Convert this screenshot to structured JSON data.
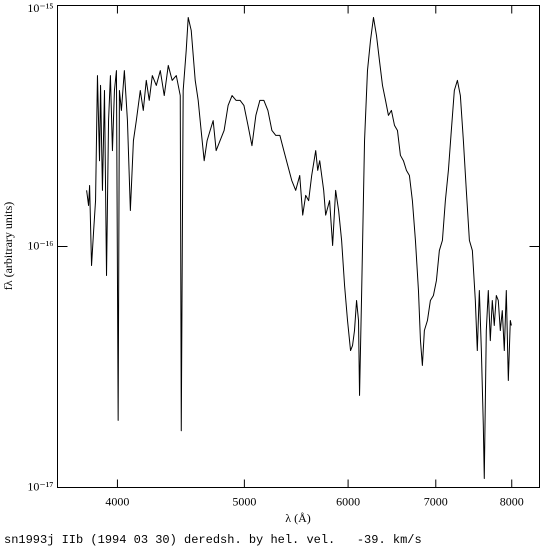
{
  "chart_data": {
    "type": "line",
    "xlabel": "λ (Å)",
    "ylabel": "fλ (arbitrary units)",
    "caption": "sn1993j IIb (1994 03 30) deredsh. by hel. vel.   -39. km/s",
    "xlog": true,
    "ylog": true,
    "grid": false,
    "xlim": [
      3600,
      8400
    ],
    "ylim": [
      1e-17,
      1e-15
    ],
    "xticks": [
      4000,
      5000,
      6000,
      7000,
      8000
    ],
    "yticks": [
      {
        "value": 1e-17,
        "label": "10⁻¹⁷"
      },
      {
        "value": 1e-16,
        "label": "10⁻¹⁶"
      },
      {
        "value": 1e-15,
        "label": "10⁻¹⁵"
      }
    ],
    "color": "#000000",
    "x": [
      3789,
      3802,
      3809,
      3822,
      3836,
      3849,
      3862,
      3876,
      3883,
      3896,
      3910,
      3924,
      3938,
      3951,
      3965,
      3979,
      3993,
      4005,
      4014,
      4028,
      4049,
      4071,
      4092,
      4114,
      4135,
      4164,
      4186,
      4208,
      4230,
      4253,
      4283,
      4313,
      4343,
      4374,
      4404,
      4436,
      4467,
      4475,
      4490,
      4514,
      4530,
      4554,
      4586,
      4610,
      4634,
      4659,
      4683,
      4708,
      4733,
      4758,
      4791,
      4825,
      4859,
      4893,
      4927,
      4962,
      4996,
      5032,
      5067,
      5102,
      5138,
      5174,
      5211,
      5248,
      5284,
      5322,
      5359,
      5396,
      5434,
      5472,
      5511,
      5540,
      5569,
      5598,
      5628,
      5668,
      5688,
      5708,
      5748,
      5768,
      5808,
      5839,
      5870,
      5901,
      5932,
      5963,
      5994,
      6026,
      6047,
      6068,
      6090,
      6111,
      6122,
      6143,
      6176,
      6208,
      6241,
      6274,
      6307,
      6340,
      6374,
      6408,
      6441,
      6475,
      6510,
      6544,
      6578,
      6613,
      6648,
      6683,
      6718,
      6754,
      6790,
      6814,
      6837,
      6861,
      6898,
      6934,
      6971,
      7008,
      7044,
      7082,
      7119,
      7157,
      7194,
      7232,
      7271,
      7309,
      7348,
      7386,
      7426,
      7465,
      7504,
      7530,
      7557,
      7584,
      7610,
      7623,
      7650,
      7677,
      7704,
      7731,
      7758,
      7786,
      7813,
      7841,
      7868,
      7896,
      7924,
      7952,
      7980,
      7995
    ],
    "values": [
      1.71e-16,
      1.48e-16,
      1.79e-16,
      8.34e-17,
      1.16e-16,
      1.55e-16,
      5.12e-16,
      2.27e-16,
      4.66e-16,
      1.71e-16,
      4.44e-16,
      7.58e-17,
      3.33e-16,
      5.12e-16,
      2.5e-16,
      4.44e-16,
      5.37e-16,
      1.9e-17,
      4.44e-16,
      3.67e-16,
      5.37e-16,
      3.33e-16,
      1.41e-16,
      2.75e-16,
      3.33e-16,
      4.44e-16,
      3.67e-16,
      4.89e-16,
      4.04e-16,
      5.12e-16,
      4.66e-16,
      5.37e-16,
      4.23e-16,
      5.64e-16,
      4.89e-16,
      5.12e-16,
      4.23e-16,
      1.72e-17,
      4.44e-16,
      6.51e-16,
      8.92e-16,
      7.88e-16,
      4.89e-16,
      4.04e-16,
      3.03e-16,
      2.27e-16,
      2.75e-16,
      3.03e-16,
      3.33e-16,
      2.5e-16,
      2.75e-16,
      3.03e-16,
      3.85e-16,
      4.23e-16,
      4.04e-16,
      4.04e-16,
      3.85e-16,
      3.18e-16,
      2.62e-16,
      3.5e-16,
      4.04e-16,
      4.04e-16,
      3.67e-16,
      3.03e-16,
      2.89e-16,
      2.89e-16,
      2.5e-16,
      2.17e-16,
      1.88e-16,
      1.71e-16,
      1.97e-16,
      1.35e-16,
      1.63e-16,
      1.55e-16,
      1.97e-16,
      2.5e-16,
      2.07e-16,
      2.27e-16,
      1.71e-16,
      1.35e-16,
      1.55e-16,
      1.01e-16,
      1.71e-16,
      1.41e-16,
      1.06e-16,
      6.89e-17,
      4.93e-17,
      3.7e-17,
      3.88e-17,
      4.48e-17,
      5.97e-17,
      4.93e-17,
      2.41e-17,
      5.97e-17,
      2.75e-16,
      5.37e-16,
      7.16e-16,
      8.92e-16,
      7.51e-16,
      5.91e-16,
      4.66e-16,
      4.04e-16,
      3.5e-16,
      3.67e-16,
      3.18e-16,
      3.03e-16,
      2.39e-16,
      2.27e-16,
      2.07e-16,
      1.97e-16,
      1.55e-16,
      1.06e-16,
      6.57e-17,
      4.07e-17,
      3.21e-17,
      4.48e-17,
      4.93e-17,
      5.97e-17,
      6.26e-17,
      7.23e-17,
      9.62e-17,
      1.06e-16,
      1.55e-16,
      2.07e-16,
      3.03e-16,
      4.44e-16,
      4.89e-16,
      4.23e-16,
      2.75e-16,
      1.71e-16,
      1.06e-16,
      9.62e-17,
      5.97e-17,
      3.7e-17,
      6.57e-17,
      3.7e-17,
      1.81e-17,
      1.09e-17,
      4.48e-17,
      6.57e-17,
      4.07e-17,
      5.97e-17,
      4.7e-17,
      6.26e-17,
      5.97e-17,
      4.48e-17,
      5.42e-17,
      3.7e-17,
      6.57e-17,
      2.78e-17,
      4.93e-17,
      4.7e-17
    ]
  }
}
